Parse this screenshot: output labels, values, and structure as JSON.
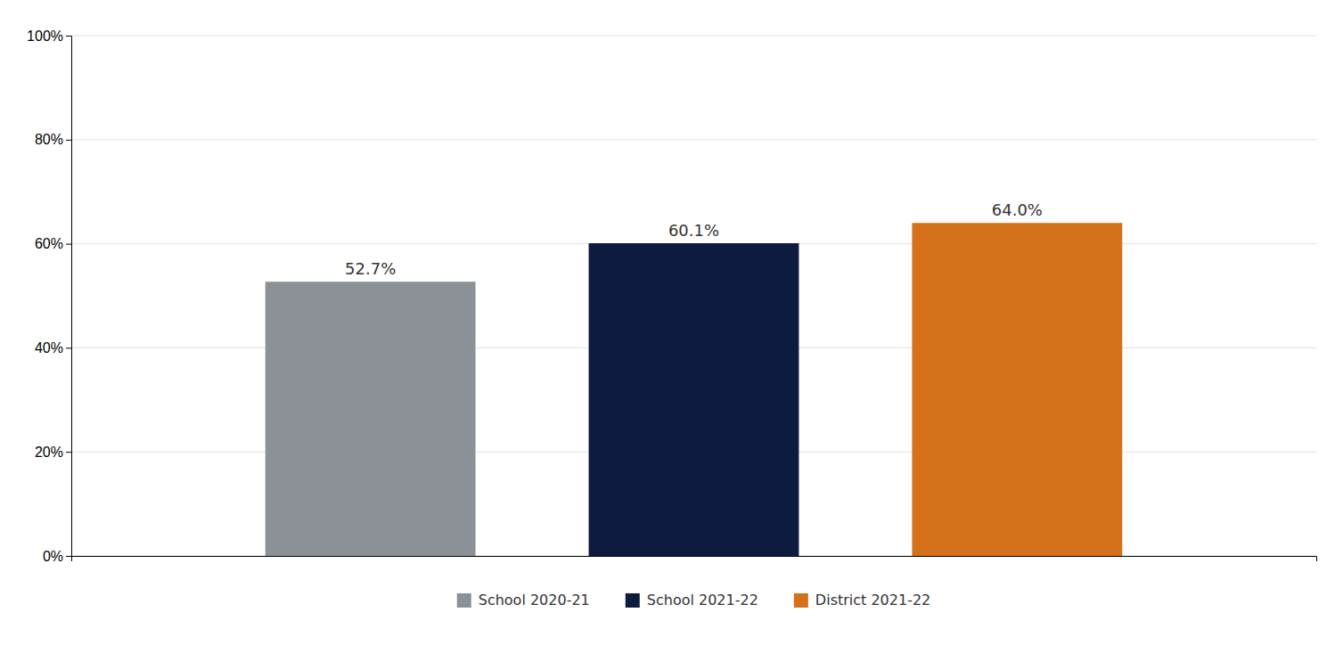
{
  "chart_data": {
    "type": "bar",
    "categories": [
      "School 2020-21",
      "School 2021-22",
      "District 2021-22"
    ],
    "values": [
      52.7,
      60.1,
      64.0
    ],
    "value_labels": [
      "52.7%",
      "60.1%",
      "64.0%"
    ],
    "colors": [
      "#8c9198",
      "#0d1b3e",
      "#d4711a"
    ],
    "ylim": [
      0,
      100
    ],
    "yticks": [
      {
        "value": 0,
        "label": "0%"
      },
      {
        "value": 20,
        "label": "20%"
      },
      {
        "value": 40,
        "label": "40%"
      },
      {
        "value": 60,
        "label": "60%"
      },
      {
        "value": 80,
        "label": "80%"
      },
      {
        "value": 100,
        "label": "100%"
      }
    ],
    "grid": true,
    "legend": "bottom",
    "data_labels": true,
    "tick_labels": "y"
  }
}
